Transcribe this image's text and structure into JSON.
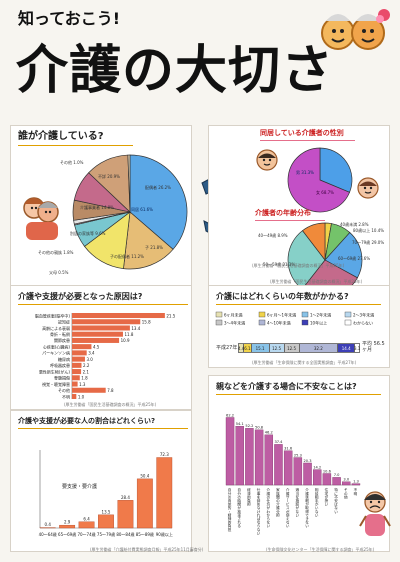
{
  "poster": {
    "kicker": "知っておこう!",
    "title": "介護の大切さ"
  },
  "s1": {
    "header": "誰が介護している?",
    "caption": "(厚生労働省「国民生活基礎調査の概況」平成25年)",
    "chart_data": {
      "type": "pie",
      "categories": [
        "同居",
        "配偶者",
        "子",
        "子の配偶者",
        "父母",
        "その他の親族",
        "別居の家族等",
        "介護事業者",
        "不詳",
        "その他"
      ],
      "values": [
        61.6,
        26.2,
        21.8,
        11.2,
        0.5,
        1.8,
        9.6,
        14.8,
        20.9,
        1.0
      ],
      "slice_labels": [
        "同居 61.6%",
        "配偶者 26.2%",
        "子 21.8%",
        "子の配偶者 11.2%",
        "父母 0.5%",
        "その他の親族 1.8%",
        "別居の家族等 9.6%",
        "介護事業者 14.8%",
        "不詳 20.9%",
        "その他 1.0%"
      ],
      "colors": [
        "#5aa7e6",
        "#e6bd76",
        "#f1e46a",
        "#79c7cf",
        "#f2d1dc",
        "#e5e6e6",
        "#b98b66",
        "#c46a8b",
        "#cfa078",
        "#e6d1b1"
      ]
    }
  },
  "s2": {
    "header_left": "同居している介護者の性別",
    "header_right": "介護者の年齢分布",
    "caption": "(厚生労働省「国民生活基礎調査の概況」平成25年)",
    "gender": {
      "chart_data": {
        "type": "pie",
        "categories": [
          "男",
          "女"
        ],
        "values": [
          31.3,
          68.7
        ],
        "labels": [
          "男 31.3%",
          "女 68.7%"
        ],
        "colors": [
          "#4d9fe8",
          "#c34fc6"
        ]
      }
    },
    "age": {
      "chart_data": {
        "type": "pie",
        "categories": [
          "40歳未満",
          "40〜49歳",
          "50〜59歳",
          "60〜69歳",
          "70〜79歳",
          "80歳以上"
        ],
        "values": [
          2.8,
          8.9,
          21.3,
          27.6,
          29.0,
          10.4
        ],
        "labels": [
          "40歳未満 2.8%",
          "40〜49歳 8.9%",
          "50〜59歳 21.3%",
          "60〜69歳 27.6%",
          "70〜79歳 29.0%",
          "80歳以上 10.4%"
        ],
        "colors": [
          "#f0d34a",
          "#74c36a",
          "#5aa7e6",
          "#c46a8b",
          "#86d0c8",
          "#f08a3a"
        ]
      }
    }
  },
  "s3": {
    "header": "介護や支援が必要となった原因は?",
    "caption": "(厚生労働省「国民生活基礎調査の概況」平成25年)",
    "chart_data": {
      "type": "bar",
      "orientation": "horizontal",
      "categories": [
        "脳血管疾患(脳卒中)",
        "認知症",
        "高齢による衰弱",
        "骨折・転倒",
        "関節疾患",
        "心疾患(心臓病)",
        "パーキンソン病",
        "糖尿病",
        "呼吸器疾患",
        "悪性新生物(がん)",
        "脊髄損傷",
        "視覚・聴覚障害",
        "その他",
        "不明"
      ],
      "values": [
        21.5,
        15.8,
        13.4,
        11.8,
        10.9,
        4.5,
        3.4,
        3.0,
        2.2,
        2.1,
        1.8,
        1.3,
        7.8,
        1.0
      ],
      "value_labels": [
        "21.5",
        "15.8",
        "13.4",
        "11.8",
        "10.9",
        "4.5",
        "3.4",
        "3.0",
        "2.2",
        "2.1",
        "1.8",
        "1.3",
        "7.8",
        "1.0"
      ],
      "ylim": [
        0,
        25
      ],
      "color": "#e66a47"
    }
  },
  "s4": {
    "header": "介護にはどれくらいの年数がかかる?",
    "caption": "(厚生労働省「生命保険に関する全国実態調査」平成27年)",
    "legend": [
      "6ヶ月未満",
      "6ヶ月〜1年未満",
      "1〜2年未満",
      "2〜3年未満",
      "3〜4年未満",
      "4〜10年未満",
      "10年以上",
      "わからない"
    ],
    "row_label": "平成27年",
    "avg_label": "平均 56.5ヶ月",
    "chart_data": {
      "type": "table",
      "categories": [
        "6ヶ月未満",
        "6ヶ月〜1年未満",
        "1〜2年未満",
        "2〜3年未満",
        "3〜4年未満",
        "4〜10年未満",
        "10年以上",
        "わからない"
      ],
      "values": [
        4.4,
        6.1,
        15.1,
        12.5,
        12.5,
        32.2,
        14.4,
        3.1
      ],
      "labels": [
        "4.4",
        "6.1",
        "15.1",
        "12.5",
        "12.5",
        "32.2",
        "14.4",
        "3.1"
      ],
      "colors": [
        "#e6e1b2",
        "#f0d34a",
        "#89c3e8",
        "#b8d8ef",
        "#c7c7c7",
        "#b0b7d6",
        "#3d3fb6",
        "#ffffff"
      ]
    }
  },
  "s5": {
    "header": "介護や支援が必要な人の割合はどれくらい?",
    "caption": "(厚生労働省「介護給付費実態調査月報」平成25年11月審査分)",
    "annotation": "要支援・要介護",
    "chart_data": {
      "type": "bar",
      "categories": [
        "40〜64歳",
        "65〜69歳",
        "70〜74歳",
        "75〜79歳",
        "80〜84歳",
        "85〜89歳",
        "90歳以上"
      ],
      "values": [
        0.4,
        2.9,
        6.4,
        13.5,
        28.4,
        50.4,
        72.3
      ],
      "value_labels": [
        "0.4",
        "2.9",
        "6.4",
        "13.5",
        "28.4",
        "50.4",
        "72.3"
      ],
      "ylim": [
        0,
        80
      ],
      "color": "#f07a4a"
    }
  },
  "s6": {
    "header": "親などを介護する場合に不安なことは?",
    "caption": "(生命保険文化センター「生活保障に関する調査」平成25年)",
    "chart_data": {
      "type": "bar",
      "categories": [
        "自分の肉体的・精神的負担",
        "自分の時間が拘束される",
        "経済的負担",
        "仕事を辞めなければならない",
        "介護の仕方がわからない",
        "家族間の介護分担",
        "介護サービスが使えない",
        "適当な施設がない",
        "介護休暇が取得できない",
        "相談相手がいない",
        "住宅が狭い",
        "特に不安はない",
        "その他",
        "不明"
      ],
      "values": [
        62.2,
        54.1,
        52.2,
        50.8,
        46.2,
        37.4,
        31.6,
        25.3,
        20.3,
        14.2,
        10.6,
        7.0,
        3.0,
        1.3
      ],
      "value_labels": [
        "62.2",
        "54.1",
        "52.2",
        "50.8",
        "46.2",
        "37.4",
        "31.6",
        "25.3",
        "20.3",
        "14.2",
        "10.6",
        "7.0",
        "3.0",
        "1.3"
      ],
      "ylim": [
        0,
        70
      ],
      "color": "#bd5da3"
    }
  }
}
